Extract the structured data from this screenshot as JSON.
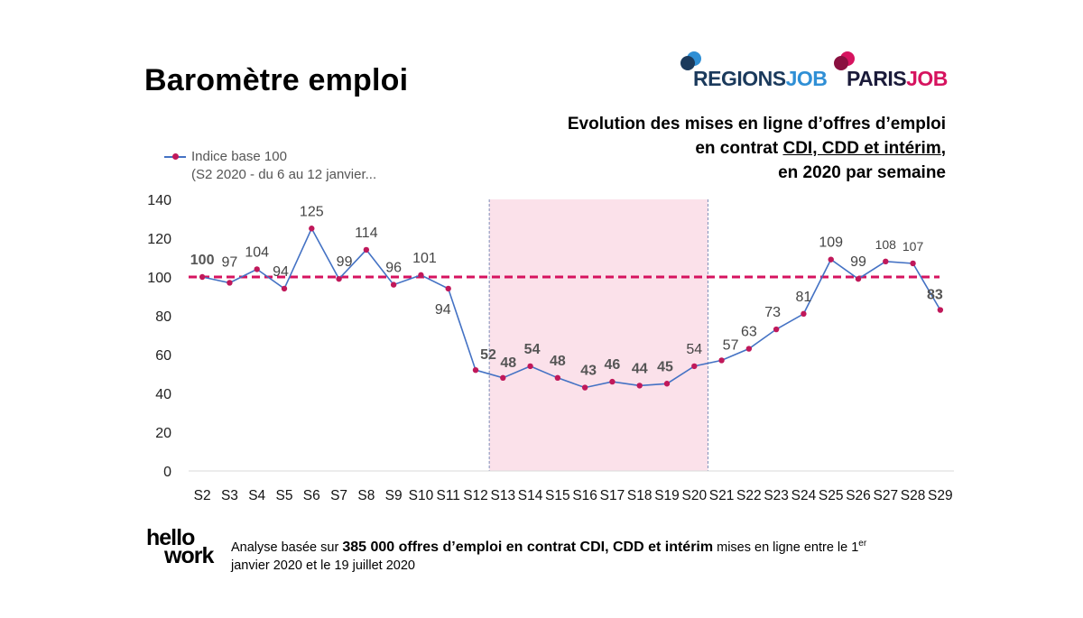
{
  "header": {
    "title": "Baromètre emploi",
    "logos": [
      {
        "part1": "REGIONS",
        "part2": "JOB",
        "colors": {
          "part1": "#1b3a5c",
          "part2": "#2f8fd5",
          "bubble1": "#2f8fd5",
          "bubble2": "#1b3a5c"
        }
      },
      {
        "part1": "PARIS",
        "part2": "JOB",
        "colors": {
          "part1": "#1b1b3a",
          "part2": "#d6135f",
          "bubble1": "#d6135f",
          "bubble2": "#8a1040"
        }
      }
    ]
  },
  "subtitle": {
    "line1": "Evolution des mises en ligne d’offres d’emploi",
    "line2_prefix": "en contrat ",
    "line2_underlined": "CDI, CDD et intérim",
    "line2_suffix": ",",
    "line3": "en 2020 par semaine"
  },
  "legend": {
    "line1": "Indice base 100",
    "line2": "(S2 2020 - du 6 au 12 janvier..."
  },
  "chart_data": {
    "type": "line",
    "categories": [
      "S2",
      "S3",
      "S4",
      "S5",
      "S6",
      "S7",
      "S8",
      "S9",
      "S10",
      "S11",
      "S12",
      "S13",
      "S14",
      "S15",
      "S16",
      "S17",
      "S18",
      "S19",
      "S20",
      "S21",
      "S22",
      "S23",
      "S24",
      "S25",
      "S26",
      "S27",
      "S28",
      "S29"
    ],
    "series": [
      {
        "name": "Indice base 100",
        "values": [
          100,
          97,
          104,
          94,
          125,
          99,
          114,
          96,
          101,
          94,
          52,
          48,
          54,
          48,
          43,
          46,
          44,
          45,
          54,
          57,
          63,
          73,
          81,
          109,
          99,
          108,
          107,
          83
        ]
      }
    ],
    "labels": [
      "100",
      "97",
      "104",
      "94",
      "125",
      "99",
      "114",
      "96",
      "101",
      "94",
      "52",
      "48",
      "54",
      "48",
      "43",
      "46",
      "44",
      "45",
      "54",
      "57",
      "63",
      "73",
      "81",
      "109",
      "99",
      "108",
      "107",
      "83"
    ],
    "ylim": [
      0,
      140
    ],
    "yticks": [
      "0",
      "20",
      "40",
      "60",
      "80",
      "100",
      "120",
      "140"
    ],
    "reference_line": 100,
    "highlight_range": [
      "S13",
      "S20"
    ],
    "grid": false,
    "legend_position": "top-left",
    "colors": {
      "line": "#4472c4",
      "marker": "#c0185a",
      "reference": "#d6135f",
      "highlight": "#fbe1ea",
      "highlight_border": "#7f8fb8"
    }
  },
  "footer": {
    "logo_line1": "hello",
    "logo_line2": "work",
    "text_prefix": "Analyse basée sur ",
    "text_bold": "385 000 offres d’emploi en contrat CDI, CDD et intérim",
    "text_mid": " mises en ligne entre le 1",
    "text_sup": "er",
    "text_line2": "janvier 2020 et le 19 juillet 2020"
  }
}
